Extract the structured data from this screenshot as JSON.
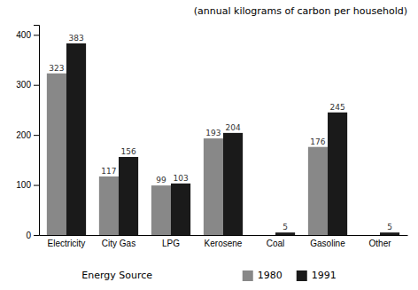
{
  "chart_data": {
    "type": "bar",
    "title": "(annual kilograms of carbon per household)",
    "xlabel": "Energy Source",
    "categories": [
      "Electricity",
      "City Gas",
      "LPG",
      "Kerosene",
      "Coal",
      "Gasoline",
      "Other"
    ],
    "series": [
      {
        "name": "1980",
        "color": "#888888",
        "values": [
          323,
          117,
          99,
          193,
          0,
          176,
          0
        ],
        "value_labels": [
          "323",
          "117",
          "99",
          "193",
          null,
          "176",
          null
        ]
      },
      {
        "name": "1991",
        "color": "#1a1a1a",
        "values": [
          383,
          156,
          103,
          204,
          5,
          245,
          5
        ]
      }
    ],
    "ylim": [
      0,
      420
    ],
    "yticks": [
      0,
      100,
      200,
      300,
      400
    ],
    "grid": false,
    "legend": "bottom",
    "data_labels": true
  }
}
